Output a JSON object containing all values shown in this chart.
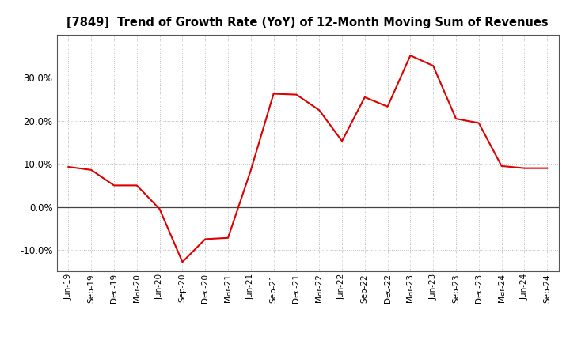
{
  "title": "[7849]  Trend of Growth Rate (YoY) of 12-Month Moving Sum of Revenues",
  "line_color": "#dd0000",
  "background_color": "#ffffff",
  "grid_color": "#bbbbbb",
  "ylim": [
    -0.15,
    0.4
  ],
  "yticks": [
    -0.1,
    0.0,
    0.1,
    0.2,
    0.3
  ],
  "dates": [
    "Jun-19",
    "Sep-19",
    "Dec-19",
    "Mar-20",
    "Jun-20",
    "Sep-20",
    "Dec-20",
    "Mar-21",
    "Jun-21",
    "Sep-21",
    "Dec-21",
    "Mar-22",
    "Jun-22",
    "Sep-22",
    "Dec-22",
    "Mar-23",
    "Jun-23",
    "Sep-23",
    "Dec-23",
    "Mar-24",
    "Jun-24",
    "Sep-24"
  ],
  "values": [
    0.093,
    0.086,
    0.05,
    0.05,
    -0.005,
    -0.128,
    -0.075,
    -0.072,
    0.085,
    0.263,
    0.261,
    0.225,
    0.153,
    0.255,
    0.233,
    0.352,
    0.328,
    0.205,
    0.195,
    0.095,
    0.09,
    0.09
  ]
}
